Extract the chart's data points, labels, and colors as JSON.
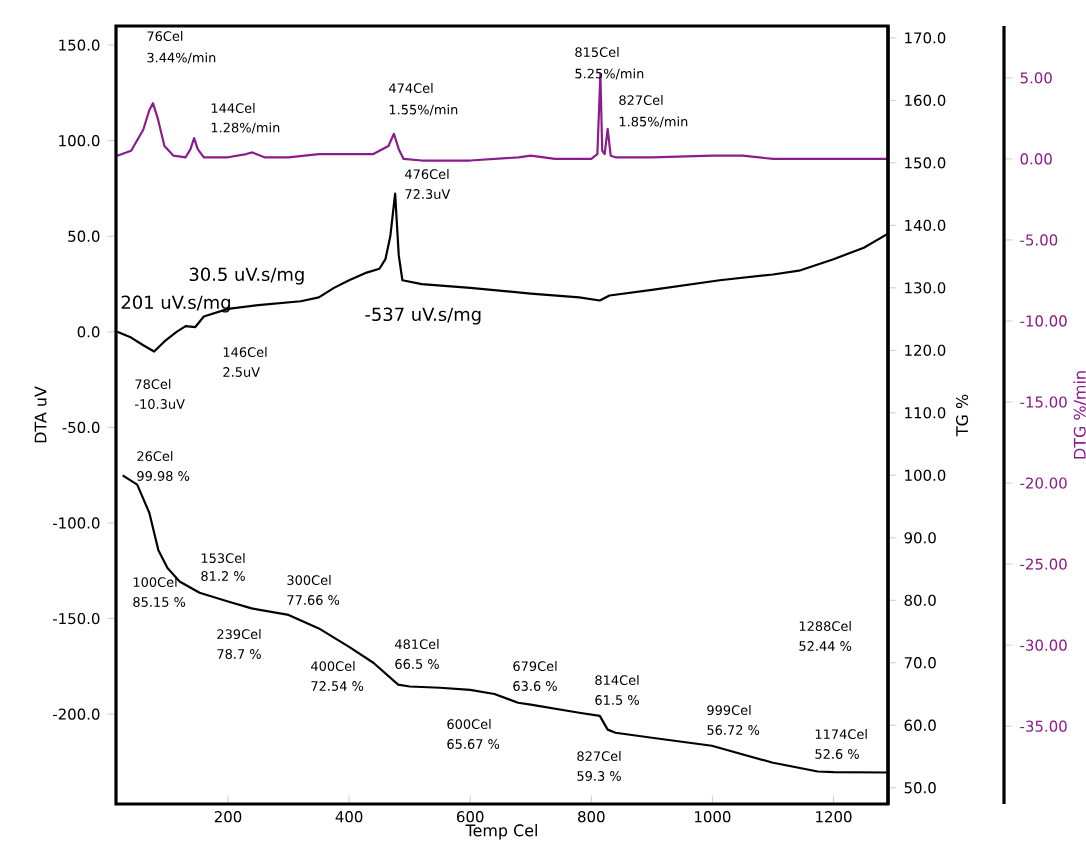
{
  "chart_data": {
    "type": "line",
    "xlabel": "Temp Cel",
    "ylabel": "DTA uV",
    "y2label": "TG %",
    "y3label": "DTG %/min",
    "xlim": [
      15,
      1290
    ],
    "ylim": [
      -247,
      160
    ],
    "y2lim": [
      47.4,
      171.9
    ],
    "y3lim": [
      -39.8,
      8.2
    ],
    "xticks": [
      200,
      400,
      600,
      800,
      1000,
      1200
    ],
    "yticks": [
      {
        "value": 150,
        "label": "150.0"
      },
      {
        "value": 100,
        "label": "100.0"
      },
      {
        "value": 50,
        "label": "50.0"
      },
      {
        "value": 0,
        "label": "0.0"
      },
      {
        "value": -50,
        "label": "-50.0"
      },
      {
        "value": -100,
        "label": "-100.0"
      },
      {
        "value": -150,
        "label": "-150.0"
      },
      {
        "value": -200,
        "label": "-200.0"
      }
    ],
    "y2ticks": [
      {
        "value": 170,
        "label": "170.0"
      },
      {
        "value": 160,
        "label": "160.0"
      },
      {
        "value": 150,
        "label": "150.0"
      },
      {
        "value": 140,
        "label": "140.0"
      },
      {
        "value": 130,
        "label": "130.0"
      },
      {
        "value": 120,
        "label": "120.0"
      },
      {
        "value": 110,
        "label": "110.0"
      },
      {
        "value": 100,
        "label": "100.0"
      },
      {
        "value": 90,
        "label": "90.0"
      },
      {
        "value": 80,
        "label": "80.0"
      },
      {
        "value": 70,
        "label": "70.0"
      },
      {
        "value": 60,
        "label": "60.0"
      },
      {
        "value": 50,
        "label": "50.0"
      }
    ],
    "y3ticks": [
      {
        "value": 5,
        "label": "5.00"
      },
      {
        "value": 0,
        "label": "0.00"
      },
      {
        "value": -5,
        "label": "-5.00"
      },
      {
        "value": -10,
        "label": "-10.00"
      },
      {
        "value": -15,
        "label": "-15.00"
      },
      {
        "value": -20,
        "label": "-20.00"
      },
      {
        "value": -25,
        "label": "-25.00"
      },
      {
        "value": -30,
        "label": "-30.00"
      },
      {
        "value": -35,
        "label": "-35.00"
      }
    ],
    "series": [
      {
        "axis": "y3",
        "color": "#8b1c8b",
        "x": [
          17,
          40,
          60,
          70,
          76,
          84,
          95,
          110,
          130,
          138,
          144,
          150,
          160,
          200,
          230,
          240,
          260,
          300,
          350,
          400,
          440,
          465,
          474,
          482,
          490,
          520,
          600,
          680,
          700,
          740,
          800,
          810,
          815,
          818,
          822,
          827,
          832,
          840,
          900,
          1000,
          1050,
          1100,
          1200,
          1290
        ],
        "values": [
          0.2,
          0.5,
          1.8,
          3.0,
          3.44,
          2.5,
          0.8,
          0.2,
          0.1,
          0.6,
          1.28,
          0.6,
          0.1,
          0.1,
          0.3,
          0.4,
          0.1,
          0.1,
          0.3,
          0.3,
          0.3,
          0.8,
          1.55,
          0.6,
          0.0,
          -0.1,
          -0.1,
          0.1,
          0.2,
          0.0,
          0.0,
          0.3,
          5.25,
          0.5,
          0.3,
          1.85,
          0.2,
          0.1,
          0.1,
          0.2,
          0.2,
          0.0,
          0.0,
          0.0
        ]
      },
      {
        "axis": "y",
        "color": "#000000",
        "x": [
          17,
          40,
          60,
          78,
          95,
          115,
          130,
          146,
          160,
          200,
          250,
          320,
          350,
          375,
          400,
          429,
          450,
          460,
          468,
          476,
          482,
          488,
          520,
          600,
          700,
          780,
          814,
          830,
          900,
          1012,
          1100,
          1143,
          1200,
          1250,
          1288
        ],
        "values": [
          0,
          -3,
          -7,
          -10.3,
          -5,
          0,
          3,
          2.5,
          8,
          12,
          14,
          16,
          18,
          23,
          27,
          31,
          33,
          38,
          50,
          72.3,
          40,
          27,
          25,
          23,
          20,
          18,
          16.4,
          19,
          22,
          27,
          30,
          32,
          38,
          44,
          51
        ]
      },
      {
        "axis": "y2",
        "color": "#000000",
        "x": [
          26,
          50,
          70,
          85,
          100,
          120,
          153,
          200,
          239,
          300,
          350,
          400,
          440,
          481,
          500,
          550,
          600,
          640,
          679,
          700,
          780,
          814,
          827,
          840,
          900,
          999,
          1100,
          1174,
          1200,
          1288
        ],
        "values": [
          99.98,
          98.5,
          94,
          88,
          85.15,
          83,
          81.2,
          79.8,
          78.7,
          77.66,
          75.5,
          72.54,
          70,
          66.5,
          66.2,
          66,
          65.67,
          65,
          63.6,
          63.3,
          62,
          61.5,
          59.3,
          58.8,
          58,
          56.72,
          54,
          52.6,
          52.5,
          52.44
        ]
      }
    ],
    "annotations": [
      "76Cel",
      "3.44%/min",
      "144Cel",
      "1.28%/min",
      "474Cel",
      "1.55%/min",
      "815Cel",
      "5.25%/min",
      "827Cel",
      "1.85%/min",
      "476Cel",
      "72.3uV",
      "30.5 uV.s/mg",
      "201 uV.s/mg",
      "-537 uV.s/mg",
      "78Cel",
      "-10.3uV",
      "146Cel",
      "2.5uV",
      "26Cel",
      "99.98 %",
      "100Cel",
      "85.15 %",
      "153Cel",
      "81.2 %",
      "239Cel",
      "78.7 %",
      "300Cel",
      "77.66 %",
      "400Cel",
      "72.54 %",
      "481Cel",
      "66.5 %",
      "600Cel",
      "65.67 %",
      "679Cel",
      "63.6 %",
      "814Cel",
      "61.5 %",
      "827Cel",
      "59.3 %",
      "999Cel",
      "56.72 %",
      "1174Cel",
      "52.6 %",
      "1288Cel",
      "52.44 %"
    ]
  }
}
